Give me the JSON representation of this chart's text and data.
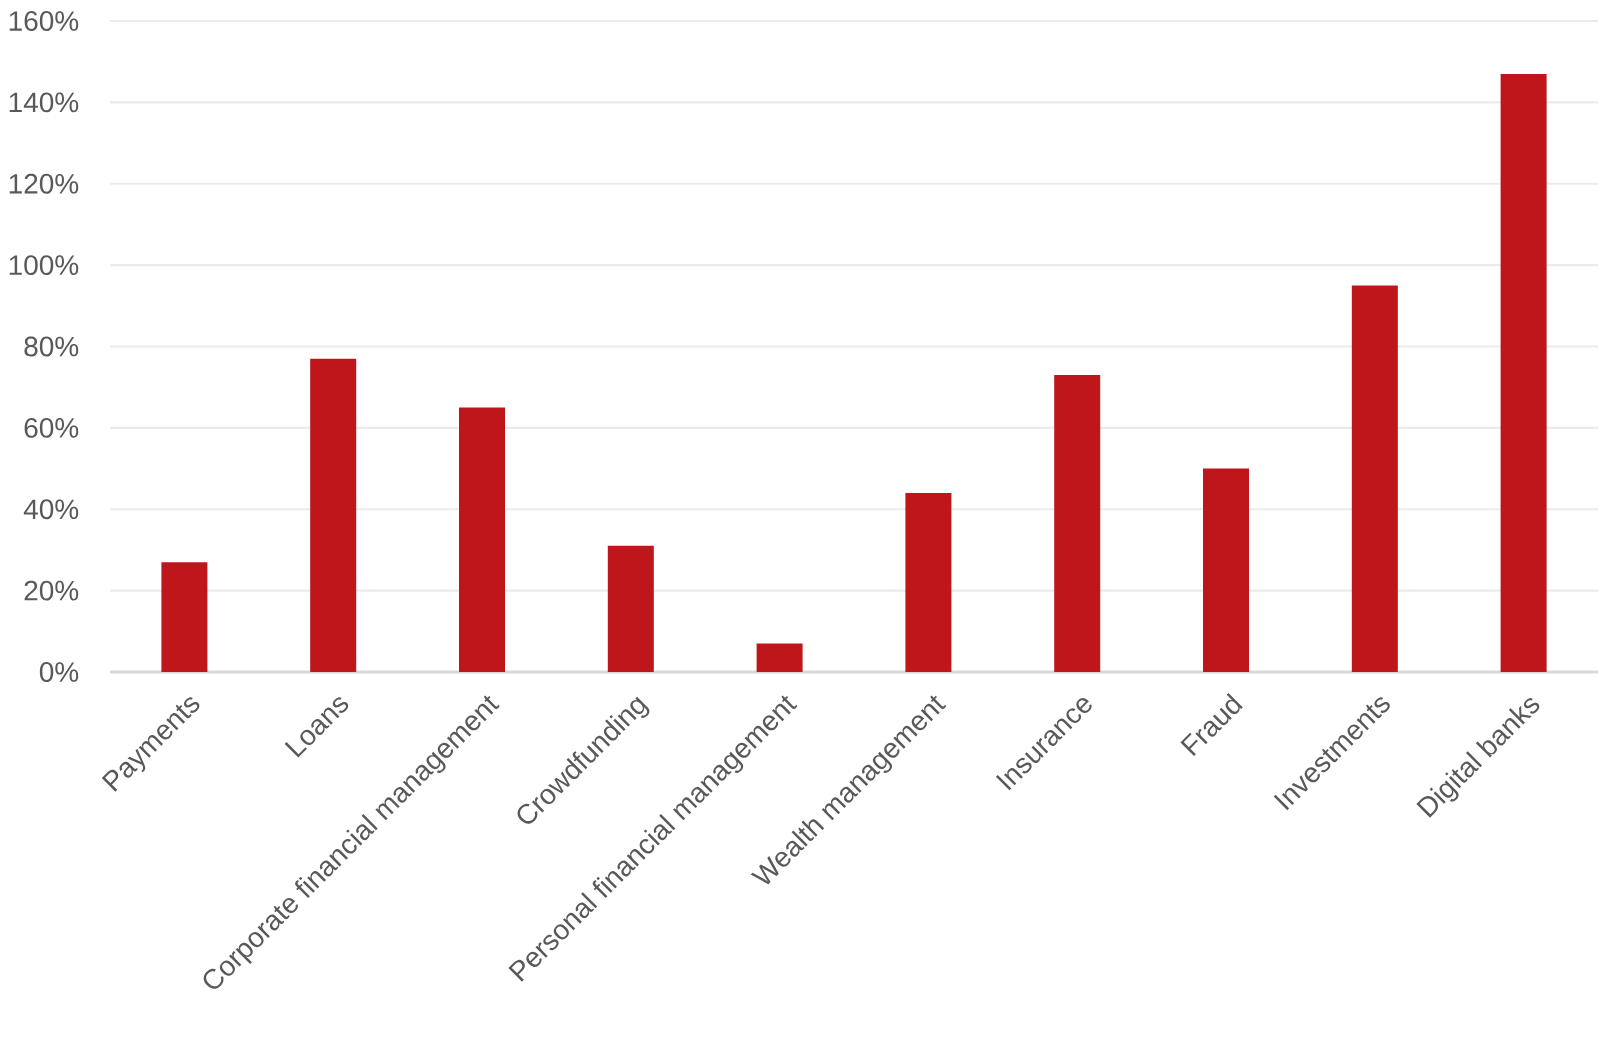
{
  "chart_data": {
    "type": "bar",
    "categories": [
      "Payments",
      "Loans",
      "Corporate financial management",
      "Crowdfunding",
      "Personal financial management",
      "Wealth management",
      "Insurance",
      "Fraud",
      "Investments",
      "Digital banks"
    ],
    "values": [
      27,
      77,
      65,
      31,
      7,
      44,
      73,
      50,
      95,
      147
    ],
    "color": "#be161b",
    "ylim": [
      0,
      160
    ],
    "yticks": [
      {
        "value": 0,
        "label": "0%"
      },
      {
        "value": 20,
        "label": "20%"
      },
      {
        "value": 40,
        "label": "40%"
      },
      {
        "value": 60,
        "label": "60%"
      },
      {
        "value": 80,
        "label": "80%"
      },
      {
        "value": 100,
        "label": "100%"
      },
      {
        "value": 120,
        "label": "120%"
      },
      {
        "value": 140,
        "label": "140%"
      },
      {
        "value": 160,
        "label": "160%"
      }
    ],
    "grid": "y"
  }
}
